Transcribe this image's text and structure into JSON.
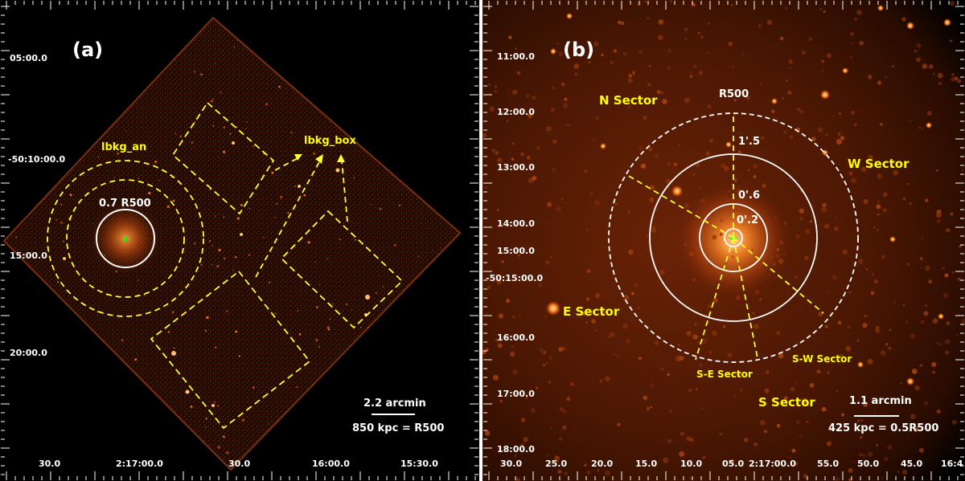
{
  "panel_a": {
    "tag": "(a)",
    "dec_labels": [
      "05:00.0",
      "-50:10:00.0",
      "15:00.0",
      "20:00.0"
    ],
    "ra_labels": [
      "30.0",
      "2:17:00.0",
      "30.0",
      "16:00.0",
      "15:30.0"
    ],
    "region_labels": {
      "an": "lbkg_an",
      "box": "lbkg_box",
      "r500": "0.7 R500"
    },
    "scalebar": {
      "arcmin": "2.2 arcmin",
      "kpc": "850 kpc = R500"
    }
  },
  "panel_b": {
    "tag": "(b)",
    "dec_labels": [
      "11:00.0",
      "12:00.0",
      "13:00.0",
      "14:00.0",
      "15:00.0",
      "-50:15:00.0",
      "16:00.0",
      "17:00.0",
      "18:00.0"
    ],
    "ra_labels": [
      "30.0",
      "25.0",
      "20.0",
      "15.0",
      "10.0",
      "05.0",
      "2:17:00.0",
      "55.0",
      "50.0",
      "45.0",
      "16:4"
    ],
    "sectors": {
      "n": "N Sector",
      "w": "W Sector",
      "e": "E Sector",
      "s": "S Sector",
      "se": "S-E Sector",
      "sw": "S-W Sector"
    },
    "radii": {
      "r500": "R500",
      "r15": "1'.5",
      "r06": "0'.6",
      "r02": "0'.2"
    },
    "scalebar": {
      "arcmin": "1.1 arcmin",
      "kpc": "425 kpc = 0.5R500"
    }
  },
  "colors": {
    "label": "#ffff00",
    "region": "#ffff33",
    "circle": "#ffffff",
    "center": "#00ff00",
    "emission": "#ff7a1a"
  }
}
